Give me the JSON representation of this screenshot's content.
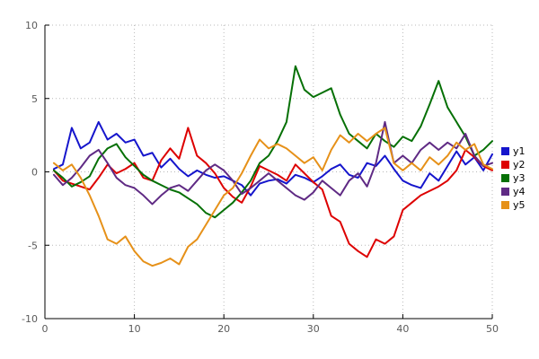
{
  "chart_data": {
    "type": "line",
    "title": "",
    "xlabel": "",
    "ylabel": "",
    "xlim": [
      0,
      50
    ],
    "ylim": [
      -10,
      10
    ],
    "xticks": [
      0,
      10,
      20,
      30,
      40,
      50
    ],
    "yticks": [
      -10,
      -5,
      0,
      5,
      10
    ],
    "grid": true,
    "legend_position": "outside-right",
    "x": [
      1,
      2,
      3,
      4,
      5,
      6,
      7,
      8,
      9,
      10,
      11,
      12,
      13,
      14,
      15,
      16,
      17,
      18,
      19,
      20,
      21,
      22,
      23,
      24,
      25,
      26,
      27,
      28,
      29,
      30,
      31,
      32,
      33,
      34,
      35,
      36,
      37,
      38,
      39,
      40,
      41,
      42,
      43,
      44,
      45,
      46,
      47,
      48,
      49,
      50
    ],
    "series": [
      {
        "name": "y1",
        "color": "#1515cc",
        "values": [
          0.2,
          0.5,
          3.0,
          1.6,
          2.0,
          3.4,
          2.2,
          2.6,
          2.0,
          2.2,
          1.1,
          1.3,
          0.3,
          0.9,
          0.2,
          -0.3,
          0.1,
          -0.2,
          -0.4,
          -0.3,
          -0.6,
          -0.9,
          -1.6,
          -0.8,
          -0.6,
          -0.5,
          -0.8,
          -0.2,
          -0.4,
          -0.7,
          -0.3,
          0.2,
          0.5,
          -0.2,
          -0.4,
          0.6,
          0.4,
          1.1,
          0.2,
          -0.6,
          -0.9,
          -1.1,
          -0.1,
          -0.6,
          0.4,
          1.4,
          0.5,
          1.0,
          0.1,
          1.2
        ]
      },
      {
        "name": "y2",
        "color": "#dd0000",
        "values": [
          0.1,
          -0.6,
          -0.8,
          -1.0,
          -1.2,
          -0.4,
          0.5,
          -0.1,
          0.2,
          0.6,
          -0.4,
          -0.6,
          0.8,
          1.6,
          0.9,
          3.0,
          1.1,
          0.6,
          -0.1,
          -1.1,
          -1.7,
          -2.1,
          -1.0,
          0.4,
          0.1,
          -0.2,
          -0.6,
          0.5,
          -0.1,
          -0.7,
          -1.2,
          -3.0,
          -3.4,
          -4.9,
          -5.4,
          -5.8,
          -4.6,
          -4.9,
          -4.4,
          -2.6,
          -2.1,
          -1.6,
          -1.3,
          -1.0,
          -0.6,
          0.1,
          1.5,
          1.0,
          0.4,
          0.1
        ]
      },
      {
        "name": "y3",
        "color": "#067006",
        "values": [
          0.1,
          -0.4,
          -1.0,
          -0.7,
          -0.3,
          0.9,
          1.6,
          1.9,
          1.0,
          0.4,
          -0.2,
          -0.6,
          -0.9,
          -1.2,
          -1.4,
          -1.8,
          -2.2,
          -2.8,
          -3.1,
          -2.6,
          -2.1,
          -1.4,
          -0.6,
          0.6,
          1.1,
          2.1,
          3.4,
          7.2,
          5.6,
          5.1,
          5.4,
          5.7,
          3.9,
          2.6,
          2.1,
          1.6,
          2.6,
          2.1,
          1.7,
          2.4,
          2.1,
          3.1,
          4.6,
          6.2,
          4.4,
          3.4,
          2.4,
          1.1,
          1.5,
          2.1
        ]
      },
      {
        "name": "y4",
        "color": "#5f2a84",
        "values": [
          -0.2,
          -0.9,
          -0.4,
          0.3,
          1.1,
          1.5,
          0.6,
          -0.4,
          -0.9,
          -1.1,
          -1.6,
          -2.2,
          -1.6,
          -1.1,
          -0.9,
          -1.3,
          -0.6,
          0.1,
          0.5,
          0.1,
          -0.6,
          -1.5,
          -1.1,
          -0.6,
          -0.1,
          -0.6,
          -1.1,
          -1.6,
          -1.9,
          -1.4,
          -0.6,
          -1.1,
          -1.6,
          -0.6,
          -0.1,
          -1.0,
          0.6,
          3.4,
          0.6,
          1.1,
          0.6,
          1.5,
          2.0,
          1.5,
          2.0,
          1.6,
          2.6,
          1.1,
          0.4,
          0.6
        ]
      },
      {
        "name": "y5",
        "color": "#e69119",
        "values": [
          0.6,
          0.1,
          0.5,
          -0.4,
          -1.6,
          -3.0,
          -4.6,
          -4.9,
          -4.4,
          -5.4,
          -6.1,
          -6.4,
          -6.2,
          -5.9,
          -6.3,
          -5.1,
          -4.6,
          -3.6,
          -2.6,
          -1.6,
          -1.1,
          -0.1,
          1.1,
          2.2,
          1.6,
          1.9,
          1.6,
          1.1,
          0.6,
          1.0,
          0.1,
          1.5,
          2.5,
          2.0,
          2.6,
          2.1,
          2.6,
          3.0,
          0.6,
          0.1,
          0.6,
          0.1,
          1.0,
          0.5,
          1.1,
          2.0,
          1.5,
          1.9,
          0.5,
          0.2
        ]
      }
    ]
  },
  "style": {
    "background": "#ffffff",
    "grid_color": "#b8b8b8",
    "axis_color": "#000000",
    "tick_label_color": "#5a5a5a"
  }
}
